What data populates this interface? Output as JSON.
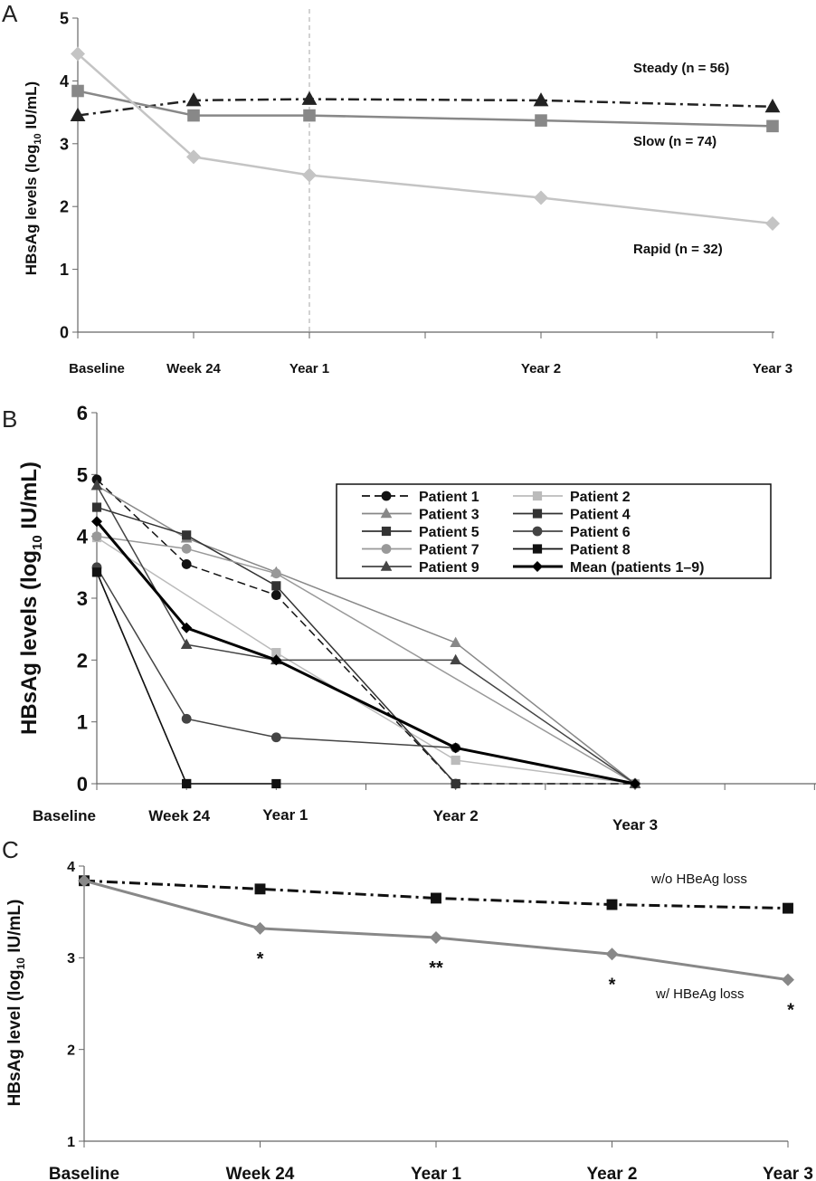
{
  "chart_data": [
    {
      "panel": "A",
      "type": "line",
      "title": "",
      "xlabel": "",
      "ylabel": "HBsAg levels (log10 IU/mL)",
      "categories": [
        "Baseline",
        "Week 24",
        "Year 1",
        "Year 2",
        "Year 3"
      ],
      "category_positions": [
        0,
        0.5,
        1,
        2,
        3
      ],
      "ylim": [
        0,
        5
      ],
      "yticks": [
        0,
        1,
        2,
        3,
        4,
        5
      ],
      "reference_line": "Year 1",
      "series": [
        {
          "name": "Steady (n = 56)",
          "x": [
            0,
            0.5,
            1,
            2,
            3
          ],
          "values": [
            3.45,
            3.69,
            3.71,
            3.69,
            3.59
          ],
          "color": "#222222",
          "marker": "triangle",
          "dash": "dashdot"
        },
        {
          "name": "Slow (n = 74)",
          "x": [
            0,
            0.5,
            1,
            2,
            3
          ],
          "values": [
            3.84,
            3.45,
            3.45,
            3.37,
            3.28
          ],
          "color": "#888888",
          "marker": "square",
          "dash": "solid"
        },
        {
          "name": "Rapid (n = 32)",
          "x": [
            0,
            0.5,
            1,
            2,
            3
          ],
          "values": [
            4.43,
            2.79,
            2.5,
            2.14,
            1.73
          ],
          "color": "#c4c4c4",
          "marker": "diamond",
          "dash": "solid"
        }
      ]
    },
    {
      "panel": "B",
      "type": "line",
      "title": "",
      "xlabel": "",
      "ylabel": "HBsAg levels (log10 IU/mL)",
      "categories": [
        "Baseline",
        "Week 24",
        "Year 1",
        "Year 2",
        "Year 3"
      ],
      "category_positions": [
        0,
        0.5,
        1,
        2,
        3
      ],
      "ylim": [
        0,
        6
      ],
      "yticks": [
        0,
        1,
        2,
        3,
        4,
        5,
        6
      ],
      "legend": "top-right",
      "series": [
        {
          "name": "Patient 1",
          "x": [
            0,
            0.5,
            1,
            2,
            3
          ],
          "values": [
            4.92,
            3.55,
            3.05,
            0,
            0
          ],
          "color": "#111111",
          "marker": "circle",
          "dash": "dashed"
        },
        {
          "name": "Patient 2",
          "x": [
            0,
            1,
            2,
            3
          ],
          "values": [
            3.98,
            2.12,
            0.38,
            0
          ],
          "color": "#bbbbbb",
          "marker": "square",
          "dash": "solid"
        },
        {
          "name": "Patient 3",
          "x": [
            0,
            0.5,
            1,
            2,
            3
          ],
          "values": [
            4.82,
            3.97,
            3.42,
            2.28,
            0
          ],
          "color": "#888888",
          "marker": "triangle",
          "dash": "solid"
        },
        {
          "name": "Patient 4",
          "x": [
            0,
            0.5
          ],
          "values": [
            3.42,
            0
          ],
          "color": "#333333",
          "marker": "square",
          "dash": "solid"
        },
        {
          "name": "Patient 5",
          "x": [
            0,
            0.5,
            1,
            2
          ],
          "values": [
            4.47,
            4.02,
            3.2,
            0
          ],
          "color": "#333333",
          "marker": "square",
          "dash": "solid"
        },
        {
          "name": "Patient 6",
          "x": [
            0,
            0.5,
            1,
            2,
            3
          ],
          "values": [
            3.5,
            1.05,
            0.75,
            0.58,
            0
          ],
          "color": "#444444",
          "marker": "circle",
          "dash": "solid"
        },
        {
          "name": "Patient 7",
          "x": [
            0,
            0.5,
            1,
            3
          ],
          "values": [
            4.0,
            3.8,
            3.4,
            0
          ],
          "color": "#999999",
          "marker": "circle",
          "dash": "solid"
        },
        {
          "name": "Patient 8",
          "x": [
            0,
            0.5,
            1
          ],
          "values": [
            3.42,
            0,
            0
          ],
          "color": "#111111",
          "marker": "square",
          "dash": "solid"
        },
        {
          "name": "Patient 9",
          "x": [
            0,
            0.5,
            1,
            2,
            3
          ],
          "values": [
            4.82,
            2.25,
            2.0,
            2.0,
            0
          ],
          "color": "#444444",
          "marker": "triangle",
          "dash": "solid"
        },
        {
          "name": "Mean (patients 1–9)",
          "x": [
            0,
            0.5,
            1,
            2,
            3
          ],
          "values": [
            4.24,
            2.52,
            2.0,
            0.58,
            0
          ],
          "color": "#000000",
          "marker": "diamond",
          "dash": "solid",
          "bold": true
        }
      ]
    },
    {
      "panel": "C",
      "type": "line",
      "title": "",
      "xlabel": "",
      "ylabel": "HBsAg level (log10 IU/mL)",
      "categories": [
        "Baseline",
        "Week 24",
        "Year 1",
        "Year 2",
        "Year 3"
      ],
      "category_positions": [
        0,
        1,
        2,
        3,
        4
      ],
      "ylim": [
        1,
        4
      ],
      "yticks": [
        1,
        2,
        3,
        4
      ],
      "series": [
        {
          "name": "w/o HBeAg loss",
          "x": [
            0,
            1,
            2,
            3,
            4
          ],
          "values": [
            3.84,
            3.75,
            3.65,
            3.58,
            3.54
          ],
          "color": "#111111",
          "marker": "square",
          "dash": "dashdot"
        },
        {
          "name": "w/ HBeAg loss",
          "x": [
            0,
            1,
            2,
            3,
            4
          ],
          "values": [
            3.84,
            3.32,
            3.22,
            3.04,
            2.76
          ],
          "color": "#888888",
          "marker": "diamond",
          "dash": "solid"
        }
      ],
      "annotations": [
        {
          "x": 1,
          "text": "*"
        },
        {
          "x": 2,
          "text": "**"
        },
        {
          "x": 3,
          "text": "*"
        },
        {
          "x": 4,
          "text": "*"
        }
      ]
    }
  ],
  "panel_labels": [
    "A",
    "B",
    "C"
  ],
  "ylabel_parts": {
    "a": {
      "pre": "HBsAg levels (log",
      "sub": "10",
      "post": " IU/mL)"
    },
    "b": {
      "pre": "HBsAg levels (log",
      "sub": "10",
      "post": " IU/mL)"
    },
    "c": {
      "pre": "HBsAg level (log",
      "sub": "10",
      "post": " IU/mL)"
    }
  }
}
